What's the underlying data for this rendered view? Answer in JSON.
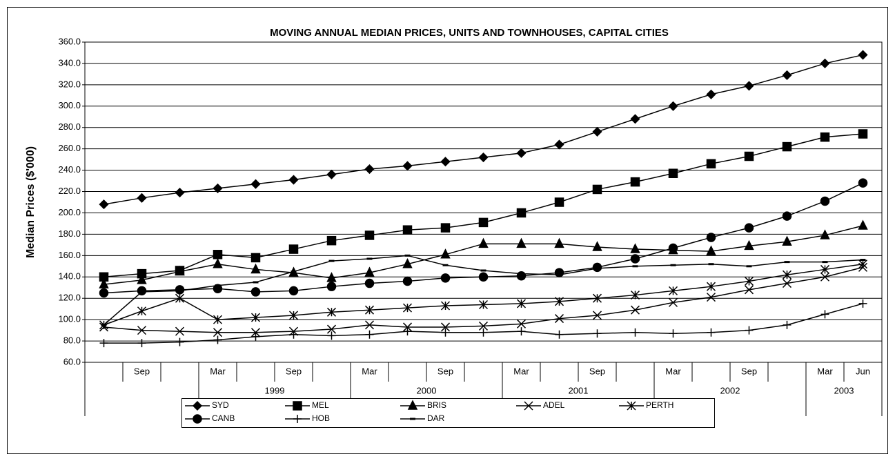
{
  "chart_data": {
    "type": "line",
    "title": "MOVING ANNUAL MEDIAN PRICES, UNITS AND TOWNHOUSES, CAPITAL CITIES",
    "y_label": "Median Prices ($'000)",
    "categories": [
      null,
      "Sep",
      null,
      "Mar",
      null,
      "Sep",
      null,
      "Mar",
      null,
      "Sep",
      null,
      "Mar",
      null,
      "Sep",
      null,
      "Mar",
      null,
      "Sep",
      null,
      "Mar",
      "Jun"
    ],
    "year_groups": [
      {
        "label": null,
        "count": 3
      },
      {
        "label": "1999",
        "count": 4
      },
      {
        "label": "2000",
        "count": 4
      },
      {
        "label": "2001",
        "count": 4
      },
      {
        "label": "2002",
        "count": 4
      },
      {
        "label": "2003",
        "count": 2
      }
    ],
    "ylim": [
      60,
      360
    ],
    "yticks": [
      {
        "value": 60,
        "label": "60.0"
      },
      {
        "value": 80,
        "label": "80.0"
      },
      {
        "value": 100,
        "label": "100.0"
      },
      {
        "value": 120,
        "label": "120.0"
      },
      {
        "value": 140,
        "label": "140.0"
      },
      {
        "value": 160,
        "label": "160.0"
      },
      {
        "value": 180,
        "label": "180.0"
      },
      {
        "value": 200,
        "label": "200.0"
      },
      {
        "value": 220,
        "label": "220.0"
      },
      {
        "value": 240,
        "label": "240.0"
      },
      {
        "value": 260,
        "label": "260.0"
      },
      {
        "value": 280,
        "label": "280.0"
      },
      {
        "value": 300,
        "label": "300.0"
      },
      {
        "value": 320,
        "label": "320.0"
      },
      {
        "value": 340,
        "label": "340.0"
      },
      {
        "value": 360,
        "label": "360.0"
      }
    ],
    "grid": true,
    "legend": "bottom",
    "series": [
      {
        "name": "SYD",
        "color": "#000000",
        "marker": "diamond",
        "values": [
          208,
          214,
          219,
          223,
          227,
          231,
          236,
          241,
          244,
          248,
          252,
          256,
          264,
          276,
          288,
          300,
          311,
          319,
          329,
          340,
          348
        ]
      },
      {
        "name": "MEL",
        "color": "#000000",
        "marker": "square",
        "values": [
          140,
          143,
          146,
          161,
          158,
          166,
          174,
          179,
          184,
          186,
          191,
          200,
          210,
          222,
          229,
          237,
          246,
          253,
          262,
          271,
          274
        ]
      },
      {
        "name": "BRIS",
        "color": "#000000",
        "marker": "triangle",
        "values": [
          133,
          137,
          145,
          152,
          147,
          144,
          139,
          144,
          152,
          161,
          171,
          171,
          171,
          168,
          166,
          165,
          164,
          169,
          173,
          179,
          188
        ]
      },
      {
        "name": "ADEL",
        "color": "#000000",
        "marker": "x",
        "values": [
          93,
          90,
          89,
          88,
          88,
          89,
          91,
          95,
          93,
          93,
          94,
          96,
          101,
          104,
          109,
          116,
          121,
          128,
          134,
          140,
          149
        ]
      },
      {
        "name": "PERTH",
        "color": "#000000",
        "marker": "star",
        "values": [
          95,
          108,
          120,
          100,
          102,
          104,
          107,
          109,
          111,
          113,
          114,
          115,
          117,
          120,
          123,
          127,
          131,
          136,
          142,
          147,
          152
        ]
      },
      {
        "name": "CANB",
        "color": "#000000",
        "marker": "circle",
        "values": [
          125,
          127,
          128,
          129,
          126,
          127,
          131,
          134,
          136,
          139,
          140,
          141,
          144,
          149,
          157,
          167,
          177,
          186,
          197,
          211,
          228
        ]
      },
      {
        "name": "HOB",
        "color": "#000000",
        "marker": "plus",
        "values": [
          78,
          78,
          79,
          81,
          84,
          86,
          85,
          86,
          89,
          88,
          88,
          89,
          86,
          87,
          88,
          87,
          88,
          90,
          95,
          105,
          115
        ]
      },
      {
        "name": "DAR",
        "color": "#000000",
        "marker": "dash",
        "values": [
          95,
          126,
          127,
          132,
          135,
          145,
          155,
          157,
          160,
          151,
          146,
          143,
          142,
          148,
          150,
          151,
          152,
          150,
          154,
          154,
          156
        ]
      }
    ]
  }
}
